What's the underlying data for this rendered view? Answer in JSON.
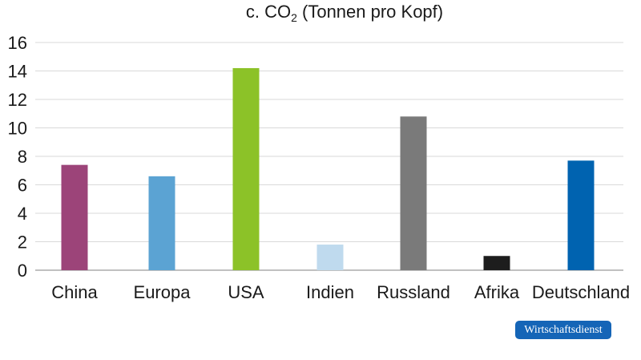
{
  "chart_data": {
    "type": "bar",
    "title_main": "c. CO",
    "title_sub": "2",
    "title_rest": " (Tonnen pro Kopf)",
    "categories": [
      "China",
      "Europa",
      "USA",
      "Indien",
      "Russland",
      "Afrika",
      "Deutschland"
    ],
    "values": [
      7.4,
      6.6,
      14.2,
      1.8,
      10.8,
      1.0,
      7.7
    ],
    "colors": [
      "#9c4479",
      "#5ba3d3",
      "#8cc228",
      "#bfdaee",
      "#7a7a7a",
      "#1d1d1d",
      "#0063b0"
    ],
    "ylim": [
      0,
      16
    ],
    "yticks": [
      "0",
      "2",
      "4",
      "6",
      "8",
      "10",
      "12",
      "14",
      "16"
    ],
    "grid": true
  },
  "footer": {
    "source_badge": "Wirtschaftsdienst"
  }
}
